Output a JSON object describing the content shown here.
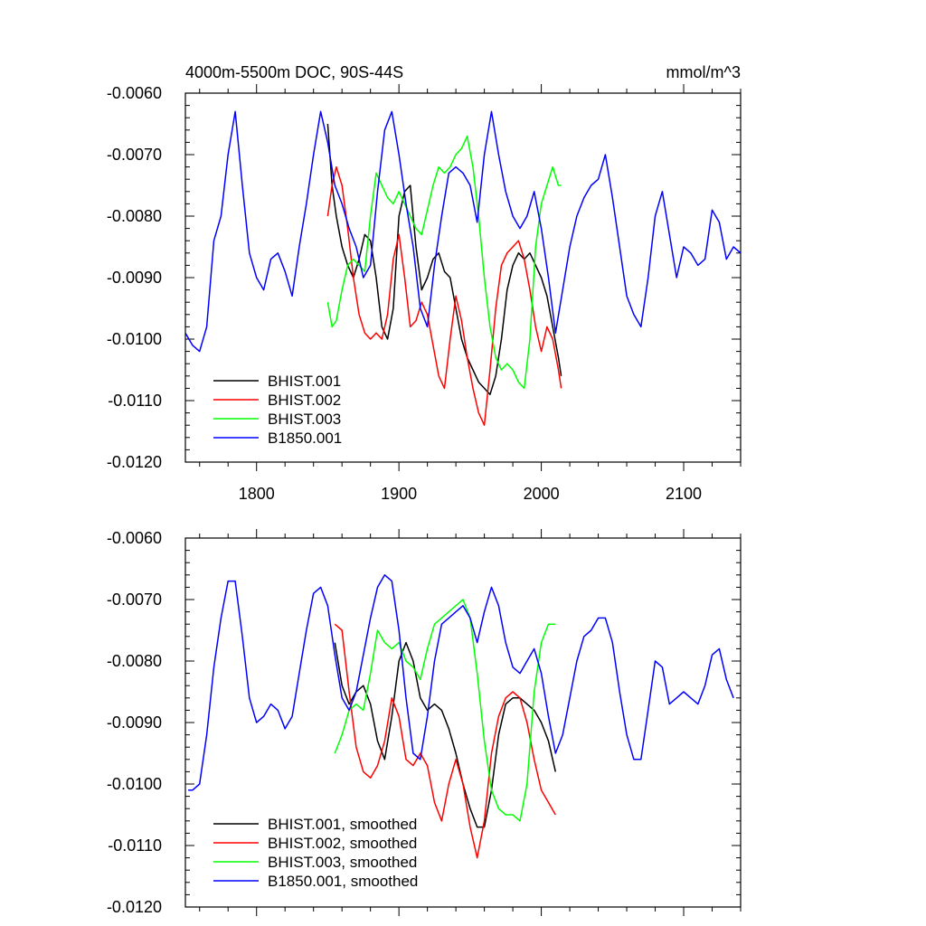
{
  "chart_data": [
    {
      "type": "line",
      "title": "4000m-5500m DOC, 90S-44S",
      "units": "mmol/m^3",
      "xlabel": "",
      "ylabel": "",
      "xlim": [
        1750,
        2140
      ],
      "ylim": [
        -0.012,
        -0.006
      ],
      "xticks": [
        1800,
        1900,
        2000,
        2100
      ],
      "xtick_labels": [
        "1800",
        "1900",
        "2000",
        "2100"
      ],
      "yticks": [
        -0.006,
        -0.007,
        -0.008,
        -0.009,
        -0.01,
        -0.011,
        -0.012
      ],
      "ytick_labels": [
        "-0.0060",
        "-0.0070",
        "-0.0080",
        "-0.0090",
        "-0.0100",
        "-0.0110",
        "-0.0120"
      ],
      "legend_position": "bottom-left",
      "series": [
        {
          "name": "BHIST.001",
          "color": "#000000",
          "x": [
            1850,
            1853,
            1856,
            1860,
            1864,
            1868,
            1872,
            1876,
            1880,
            1884,
            1888,
            1892,
            1896,
            1900,
            1904,
            1908,
            1912,
            1916,
            1920,
            1924,
            1928,
            1932,
            1936,
            1940,
            1944,
            1948,
            1952,
            1956,
            1960,
            1964,
            1968,
            1972,
            1976,
            1980,
            1984,
            1988,
            1992,
            1996,
            2000,
            2004,
            2008,
            2012,
            2014
          ],
          "values": [
            -0.0065,
            -0.0075,
            -0.008,
            -0.0085,
            -0.0088,
            -0.009,
            -0.0087,
            -0.0083,
            -0.0084,
            -0.009,
            -0.0098,
            -0.01,
            -0.0095,
            -0.008,
            -0.0076,
            -0.0075,
            -0.0085,
            -0.0092,
            -0.009,
            -0.0087,
            -0.0086,
            -0.0089,
            -0.009,
            -0.0095,
            -0.01,
            -0.0103,
            -0.0105,
            -0.0107,
            -0.0108,
            -0.0109,
            -0.0106,
            -0.01,
            -0.0092,
            -0.0088,
            -0.0086,
            -0.0087,
            -0.0086,
            -0.0088,
            -0.009,
            -0.0093,
            -0.0098,
            -0.0103,
            -0.0106
          ]
        },
        {
          "name": "BHIST.002",
          "color": "#ff0000",
          "x": [
            1850,
            1853,
            1856,
            1860,
            1864,
            1868,
            1872,
            1876,
            1880,
            1884,
            1888,
            1892,
            1896,
            1900,
            1904,
            1908,
            1912,
            1916,
            1920,
            1924,
            1928,
            1932,
            1936,
            1940,
            1944,
            1948,
            1952,
            1956,
            1960,
            1964,
            1968,
            1972,
            1976,
            1980,
            1984,
            1988,
            1992,
            1996,
            2000,
            2004,
            2008,
            2012,
            2014
          ],
          "values": [
            -0.008,
            -0.0075,
            -0.0072,
            -0.0075,
            -0.0082,
            -0.009,
            -0.0096,
            -0.0099,
            -0.01,
            -0.0099,
            -0.01,
            -0.0096,
            -0.0087,
            -0.0083,
            -0.009,
            -0.0098,
            -0.0097,
            -0.0094,
            -0.0096,
            -0.0101,
            -0.0106,
            -0.0108,
            -0.01,
            -0.0093,
            -0.0097,
            -0.0103,
            -0.0108,
            -0.0112,
            -0.0114,
            -0.0105,
            -0.0095,
            -0.0088,
            -0.0086,
            -0.0085,
            -0.0084,
            -0.0087,
            -0.0092,
            -0.0098,
            -0.0102,
            -0.0098,
            -0.01,
            -0.0105,
            -0.0108
          ]
        },
        {
          "name": "BHIST.003",
          "color": "#00ff00",
          "x": [
            1850,
            1853,
            1856,
            1860,
            1864,
            1868,
            1872,
            1876,
            1880,
            1884,
            1888,
            1892,
            1896,
            1900,
            1904,
            1908,
            1912,
            1916,
            1920,
            1924,
            1928,
            1932,
            1936,
            1940,
            1944,
            1948,
            1952,
            1956,
            1960,
            1964,
            1968,
            1972,
            1976,
            1980,
            1984,
            1988,
            1992,
            1996,
            2000,
            2004,
            2008,
            2012,
            2014
          ],
          "values": [
            -0.0094,
            -0.0098,
            -0.0097,
            -0.0092,
            -0.0088,
            -0.0087,
            -0.0088,
            -0.0089,
            -0.008,
            -0.0073,
            -0.0075,
            -0.0077,
            -0.0078,
            -0.0076,
            -0.0078,
            -0.008,
            -0.0082,
            -0.0083,
            -0.0079,
            -0.0075,
            -0.0072,
            -0.0073,
            -0.0072,
            -0.007,
            -0.0069,
            -0.0067,
            -0.0072,
            -0.008,
            -0.009,
            -0.0098,
            -0.0103,
            -0.0105,
            -0.0104,
            -0.0105,
            -0.0107,
            -0.0108,
            -0.01,
            -0.0085,
            -0.0078,
            -0.0075,
            -0.0072,
            -0.0075,
            -0.0075
          ]
        },
        {
          "name": "B1850.001",
          "color": "#0000ff",
          "x": [
            1750,
            1755,
            1760,
            1765,
            1770,
            1775,
            1780,
            1785,
            1790,
            1795,
            1800,
            1805,
            1810,
            1815,
            1820,
            1825,
            1830,
            1835,
            1840,
            1845,
            1850,
            1855,
            1860,
            1865,
            1870,
            1875,
            1880,
            1885,
            1890,
            1895,
            1900,
            1905,
            1910,
            1915,
            1920,
            1925,
            1930,
            1935,
            1940,
            1945,
            1950,
            1955,
            1960,
            1965,
            1970,
            1975,
            1980,
            1985,
            1990,
            1995,
            2000,
            2005,
            2010,
            2015,
            2020,
            2025,
            2030,
            2035,
            2040,
            2045,
            2050,
            2055,
            2060,
            2065,
            2070,
            2075,
            2080,
            2085,
            2090,
            2095,
            2100,
            2105,
            2110,
            2115,
            2120,
            2125,
            2130,
            2135,
            2140
          ],
          "values": [
            -0.0099,
            -0.0101,
            -0.0102,
            -0.0098,
            -0.0084,
            -0.008,
            -0.007,
            -0.0063,
            -0.0075,
            -0.0086,
            -0.009,
            -0.0092,
            -0.0087,
            -0.0086,
            -0.0089,
            -0.0093,
            -0.0085,
            -0.0078,
            -0.007,
            -0.0063,
            -0.0068,
            -0.0075,
            -0.0078,
            -0.0082,
            -0.0085,
            -0.009,
            -0.0088,
            -0.0076,
            -0.0066,
            -0.0063,
            -0.007,
            -0.0078,
            -0.0085,
            -0.0095,
            -0.0098,
            -0.0088,
            -0.008,
            -0.0073,
            -0.0072,
            -0.0073,
            -0.0075,
            -0.0081,
            -0.007,
            -0.0063,
            -0.007,
            -0.0076,
            -0.008,
            -0.0082,
            -0.008,
            -0.0076,
            -0.0082,
            -0.009,
            -0.0099,
            -0.0092,
            -0.0085,
            -0.008,
            -0.0077,
            -0.0075,
            -0.0074,
            -0.007,
            -0.0077,
            -0.0085,
            -0.0093,
            -0.0096,
            -0.0098,
            -0.009,
            -0.008,
            -0.0076,
            -0.0083,
            -0.009,
            -0.0085,
            -0.0086,
            -0.0088,
            -0.0087,
            -0.0079,
            -0.0081,
            -0.0087,
            -0.0085,
            -0.0086
          ]
        }
      ]
    },
    {
      "type": "line",
      "title": "",
      "xlabel": "",
      "ylabel": "",
      "xlim": [
        1750,
        2140
      ],
      "ylim": [
        -0.012,
        -0.006
      ],
      "xticks": [
        1800,
        1900,
        2000,
        2100
      ],
      "xtick_labels": [],
      "yticks": [
        -0.006,
        -0.007,
        -0.008,
        -0.009,
        -0.01,
        -0.011,
        -0.012
      ],
      "ytick_labels": [
        "-0.0060",
        "-0.0070",
        "-0.0080",
        "-0.0090",
        "-0.0100",
        "-0.0110",
        "-0.0120"
      ],
      "legend_position": "bottom-left",
      "series": [
        {
          "name": "BHIST.001, smoothed",
          "color": "#000000",
          "x": [
            1855,
            1860,
            1865,
            1870,
            1875,
            1880,
            1885,
            1890,
            1895,
            1900,
            1905,
            1910,
            1915,
            1920,
            1925,
            1930,
            1935,
            1940,
            1945,
            1950,
            1955,
            1960,
            1965,
            1970,
            1975,
            1980,
            1985,
            1990,
            1995,
            2000,
            2005,
            2010
          ],
          "values": [
            -0.0077,
            -0.0084,
            -0.0087,
            -0.0085,
            -0.0084,
            -0.0087,
            -0.0093,
            -0.0096,
            -0.0089,
            -0.008,
            -0.0077,
            -0.008,
            -0.0086,
            -0.0088,
            -0.0087,
            -0.0088,
            -0.0091,
            -0.0095,
            -0.01,
            -0.0104,
            -0.0107,
            -0.0107,
            -0.0101,
            -0.0092,
            -0.0087,
            -0.0086,
            -0.0086,
            -0.0087,
            -0.0088,
            -0.009,
            -0.0093,
            -0.0098
          ]
        },
        {
          "name": "BHIST.002, smoothed",
          "color": "#ff0000",
          "x": [
            1855,
            1860,
            1865,
            1870,
            1875,
            1880,
            1885,
            1890,
            1895,
            1900,
            1905,
            1910,
            1915,
            1920,
            1925,
            1930,
            1935,
            1940,
            1945,
            1950,
            1955,
            1960,
            1965,
            1970,
            1975,
            1980,
            1985,
            1990,
            1995,
            2000,
            2005,
            2010
          ],
          "values": [
            -0.0074,
            -0.0075,
            -0.0085,
            -0.0094,
            -0.0098,
            -0.0099,
            -0.0097,
            -0.0093,
            -0.0086,
            -0.0089,
            -0.0096,
            -0.0097,
            -0.0095,
            -0.0097,
            -0.0103,
            -0.0106,
            -0.01,
            -0.0096,
            -0.01,
            -0.0107,
            -0.0112,
            -0.0106,
            -0.0095,
            -0.0089,
            -0.0086,
            -0.0085,
            -0.0086,
            -0.009,
            -0.0096,
            -0.0101,
            -0.0103,
            -0.0105
          ]
        },
        {
          "name": "BHIST.003, smoothed",
          "color": "#00ff00",
          "x": [
            1855,
            1860,
            1865,
            1870,
            1875,
            1880,
            1885,
            1890,
            1895,
            1900,
            1905,
            1910,
            1915,
            1920,
            1925,
            1930,
            1935,
            1940,
            1945,
            1950,
            1955,
            1960,
            1965,
            1970,
            1975,
            1980,
            1985,
            1990,
            1995,
            2000,
            2005,
            2010
          ],
          "values": [
            -0.0095,
            -0.0092,
            -0.0088,
            -0.0087,
            -0.0088,
            -0.0082,
            -0.0075,
            -0.0077,
            -0.0078,
            -0.0077,
            -0.008,
            -0.0081,
            -0.0083,
            -0.0078,
            -0.0074,
            -0.0073,
            -0.0072,
            -0.0071,
            -0.007,
            -0.0073,
            -0.0082,
            -0.0093,
            -0.0101,
            -0.0104,
            -0.0105,
            -0.0105,
            -0.0106,
            -0.01,
            -0.0085,
            -0.0077,
            -0.0074,
            -0.0074
          ]
        },
        {
          "name": "B1850.001, smoothed",
          "color": "#0000ff",
          "x": [
            1752,
            1755,
            1760,
            1765,
            1770,
            1775,
            1780,
            1785,
            1790,
            1795,
            1800,
            1805,
            1810,
            1815,
            1820,
            1825,
            1830,
            1835,
            1840,
            1845,
            1850,
            1855,
            1860,
            1865,
            1870,
            1875,
            1880,
            1885,
            1890,
            1895,
            1900,
            1905,
            1910,
            1915,
            1920,
            1925,
            1930,
            1935,
            1940,
            1945,
            1950,
            1955,
            1960,
            1965,
            1970,
            1975,
            1980,
            1985,
            1990,
            1995,
            2000,
            2005,
            2010,
            2015,
            2020,
            2025,
            2030,
            2035,
            2040,
            2045,
            2050,
            2055,
            2060,
            2065,
            2070,
            2075,
            2080,
            2085,
            2090,
            2095,
            2100,
            2105,
            2110,
            2115,
            2120,
            2125,
            2130,
            2135
          ],
          "values": [
            -0.0101,
            -0.0101,
            -0.01,
            -0.0092,
            -0.0081,
            -0.0073,
            -0.0067,
            -0.0067,
            -0.0076,
            -0.0086,
            -0.009,
            -0.0089,
            -0.0087,
            -0.0088,
            -0.0091,
            -0.0089,
            -0.0082,
            -0.0075,
            -0.0069,
            -0.0068,
            -0.0071,
            -0.0079,
            -0.0086,
            -0.0088,
            -0.0085,
            -0.0079,
            -0.0073,
            -0.0068,
            -0.0066,
            -0.0067,
            -0.0075,
            -0.0086,
            -0.0095,
            -0.0096,
            -0.0089,
            -0.008,
            -0.0074,
            -0.0073,
            -0.0072,
            -0.0071,
            -0.0073,
            -0.0077,
            -0.0072,
            -0.0068,
            -0.0071,
            -0.0077,
            -0.0081,
            -0.0082,
            -0.008,
            -0.0078,
            -0.0082,
            -0.0089,
            -0.0095,
            -0.0092,
            -0.0086,
            -0.008,
            -0.0076,
            -0.0075,
            -0.0073,
            -0.0073,
            -0.0077,
            -0.0085,
            -0.0092,
            -0.0096,
            -0.0096,
            -0.0088,
            -0.008,
            -0.0081,
            -0.0087,
            -0.0086,
            -0.0085,
            -0.0086,
            -0.0087,
            -0.0084,
            -0.0079,
            -0.0078,
            -0.0083,
            -0.0086
          ]
        }
      ]
    }
  ]
}
